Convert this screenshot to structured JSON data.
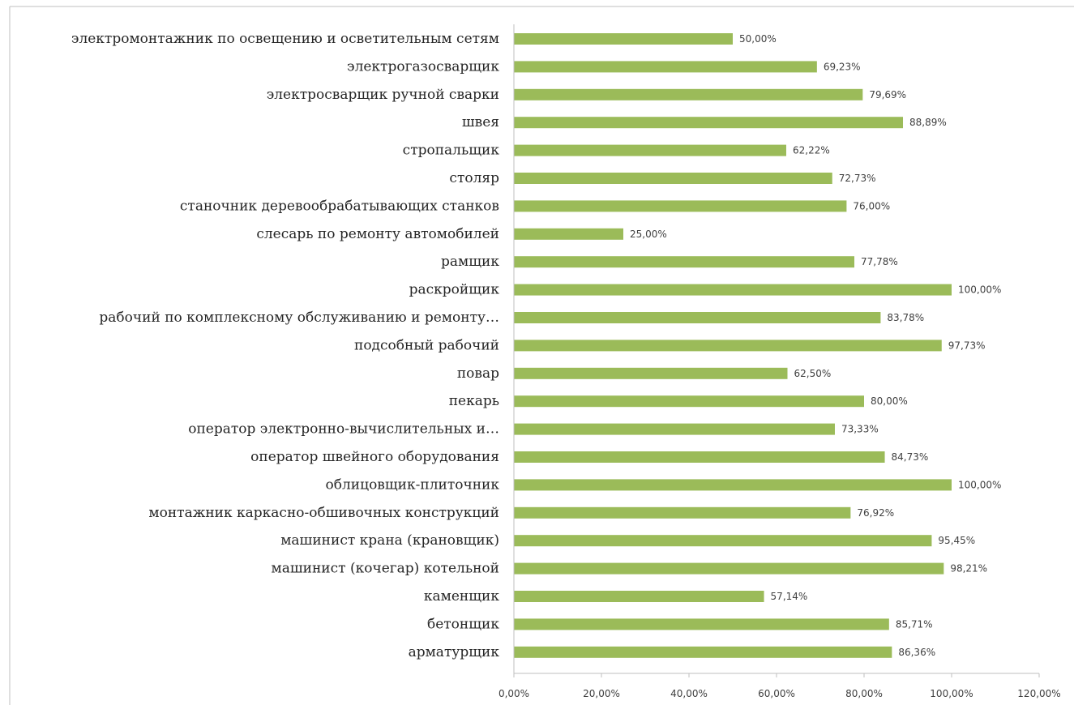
{
  "chart_data": {
    "type": "bar",
    "orientation": "horizontal",
    "title": "",
    "xlabel": "",
    "ylabel": "",
    "categories": [
      "электромонтажник по освещению и осветительным сетям",
      "электрогазосварщик",
      "электросварщик ручной сварки",
      "швея",
      "стропальщик",
      "столяр",
      "станочник деревообрабатывающих станков",
      "слесарь по ремонту автомобилей",
      "рамщик",
      "раскройщик",
      "рабочий по комплексному обслуживанию и ремонту…",
      "подсобный рабочий",
      "повар",
      "пекарь",
      "оператор электронно-вычислительных и…",
      "оператор швейного оборудования",
      "облицовщик-плиточник",
      "монтажник каркасно-обшивочных конструкций",
      "машинист крана (крановщик)",
      "машинист (кочегар) котельной",
      "каменщик",
      "бетонщик",
      "арматурщик"
    ],
    "values": [
      50.0,
      69.23,
      79.69,
      88.89,
      62.22,
      72.73,
      76.0,
      25.0,
      77.78,
      100.0,
      83.78,
      97.73,
      62.5,
      80.0,
      73.33,
      84.73,
      100.0,
      76.92,
      95.45,
      98.21,
      57.14,
      85.71,
      86.36
    ],
    "value_labels": [
      "50,00%",
      "69,23%",
      "79,69%",
      "88,89%",
      "62,22%",
      "72,73%",
      "76,00%",
      "25,00%",
      "77,78%",
      "100,00%",
      "83,78%",
      "97,73%",
      "62,50%",
      "80,00%",
      "73,33%",
      "84,73%",
      "100,00%",
      "76,92%",
      "95,45%",
      "98,21%",
      "57,14%",
      "85,71%",
      "86,36%"
    ],
    "xlim": [
      0,
      120
    ],
    "x_ticks": [
      0,
      20,
      40,
      60,
      80,
      100,
      120
    ],
    "x_tick_labels": [
      "0,00%",
      "20,00%",
      "40,00%",
      "60,00%",
      "80,00%",
      "100,00%",
      "120,00%"
    ],
    "grid": false,
    "legend": "none",
    "bar_color": "#9BBB59",
    "axis_color": "#BFBFBF",
    "frame_color": "#BFBFBF"
  }
}
